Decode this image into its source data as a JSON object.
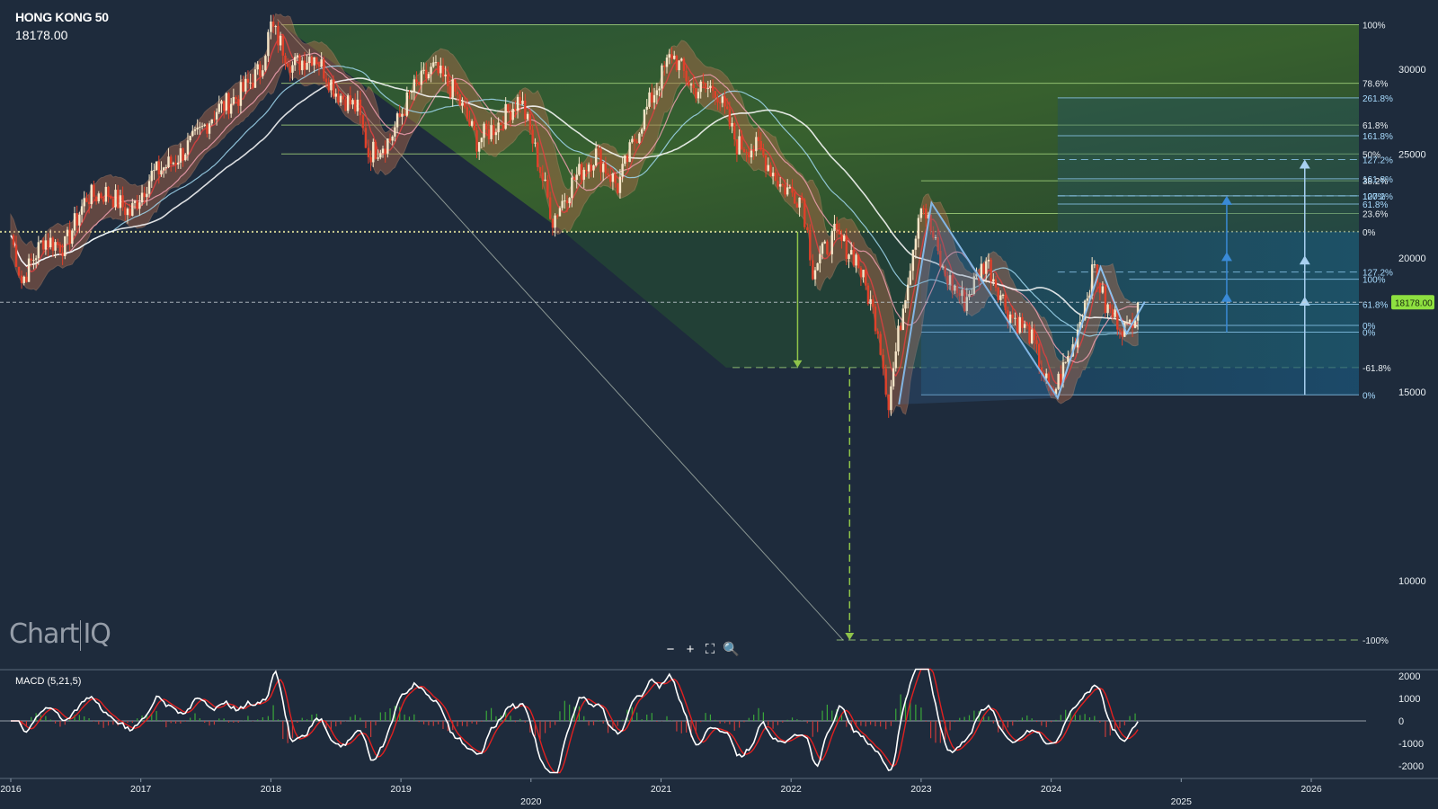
{
  "symbol": {
    "name": "HONG KONG 50",
    "last": "18178.00",
    "last_tag": "18178.00"
  },
  "logo": {
    "left": "Chart",
    "right": "IQ"
  },
  "zoom_controls": {
    "minus": "−",
    "plus": "+",
    "fullscreen": "⛶",
    "magnifier": "🔍"
  },
  "macd": {
    "label": "MACD (5,21,5)",
    "yticks": [
      "2000",
      "1000",
      "0",
      "-1000",
      "-2000"
    ]
  },
  "colors": {
    "background": "#1e2b3c",
    "candle_up": "#f5e6c8",
    "candle_down": "#e0402a",
    "band_fill": "#b46a4a",
    "fib_green": "#5a9a3a",
    "fib_blue": "#1f6d9a",
    "macd_line": "#ffffff",
    "signal_line": "#e02020"
  },
  "chart_data": {
    "type": "line",
    "title": "HONG KONG 50",
    "ylabel": "",
    "yscale": "log",
    "ylim": [
      8500,
      34000
    ],
    "yticks": [
      30000,
      25000,
      20000,
      15000,
      10000
    ],
    "xticks": [
      {
        "label": "2016",
        "year": 2016
      },
      {
        "label": "2017",
        "year": 2017
      },
      {
        "label": "2018",
        "year": 2018
      },
      {
        "label": "2019",
        "year": 2019
      },
      {
        "label": "2020",
        "year": 2020
      },
      {
        "label": "2021",
        "year": 2021
      },
      {
        "label": "2022",
        "year": 2022
      },
      {
        "label": "2023",
        "year": 2023
      },
      {
        "label": "2024",
        "year": 2024
      },
      {
        "label": "2025",
        "year": 2025
      },
      {
        "label": "2026",
        "year": 2026
      }
    ],
    "series": [
      {
        "values": [
          [
            "2016-01",
            21000
          ],
          [
            "2016-02",
            19000
          ],
          [
            "2016-04",
            20800
          ],
          [
            "2016-06",
            20500
          ],
          [
            "2016-08",
            22800
          ],
          [
            "2016-10",
            23000
          ],
          [
            "2016-12",
            22000
          ],
          [
            "2017-02",
            23900
          ],
          [
            "2017-04",
            24600
          ],
          [
            "2017-06",
            25800
          ],
          [
            "2017-08",
            27500
          ],
          [
            "2017-10",
            28300
          ],
          [
            "2017-12",
            29900
          ],
          [
            "2018-01",
            32900
          ],
          [
            "2018-03",
            30200
          ],
          [
            "2018-05",
            31000
          ],
          [
            "2018-07",
            28600
          ],
          [
            "2018-09",
            27500
          ],
          [
            "2018-10",
            25000
          ],
          [
            "2018-12",
            25800
          ],
          [
            "2019-02",
            28600
          ],
          [
            "2019-04",
            30000
          ],
          [
            "2019-06",
            28500
          ],
          [
            "2019-08",
            25700
          ],
          [
            "2019-10",
            26700
          ],
          [
            "2019-12",
            28200
          ],
          [
            "2020-03",
            21700
          ],
          [
            "2020-05",
            23700
          ],
          [
            "2020-07",
            25000
          ],
          [
            "2020-09",
            23300
          ],
          [
            "2020-11",
            26500
          ],
          [
            "2021-02",
            31000
          ],
          [
            "2021-04",
            28700
          ],
          [
            "2021-06",
            28800
          ],
          [
            "2021-08",
            25500
          ],
          [
            "2021-10",
            25300
          ],
          [
            "2021-12",
            23400
          ],
          [
            "2022-02",
            22700
          ],
          [
            "2022-03",
            19500
          ],
          [
            "2022-05",
            21000
          ],
          [
            "2022-07",
            20000
          ],
          [
            "2022-09",
            17200
          ],
          [
            "2022-10",
            14600
          ],
          [
            "2022-12",
            19800
          ],
          [
            "2023-01",
            22700
          ],
          [
            "2023-03",
            19400
          ],
          [
            "2023-05",
            18200
          ],
          [
            "2023-07",
            19900
          ],
          [
            "2023-09",
            17800
          ],
          [
            "2023-11",
            17000
          ],
          [
            "2024-01",
            14800
          ],
          [
            "2024-03",
            16500
          ],
          [
            "2024-05",
            19600
          ],
          [
            "2024-06",
            18000
          ],
          [
            "2024-08",
            17100
          ],
          [
            "2024-09",
            18178
          ]
        ]
      }
    ],
    "fib_levels_green": [
      "100%",
      "78.6%",
      "61.8%",
      "50%",
      "38.2%",
      "23.6%",
      "0%",
      "-61.8%",
      "-100%"
    ],
    "fib_values_green": [
      33000,
      29100,
      26600,
      25000,
      23600,
      22000,
      21150,
      15800,
      8800
    ],
    "fib_levels_blue": [
      "261.8%",
      "161.8%",
      "127.2%",
      "161.8%",
      "127.2%",
      "100%",
      "61.8%",
      "127.2%",
      "100%",
      "61.8%",
      "0%",
      "0%",
      "0%"
    ],
    "fib_values_blue": [
      28200,
      26000,
      24700,
      23700,
      22850,
      22850,
      22450,
      19400,
      19100,
      18100,
      17300,
      17050,
      14900
    ],
    "horizontal_ref": 18178
  }
}
